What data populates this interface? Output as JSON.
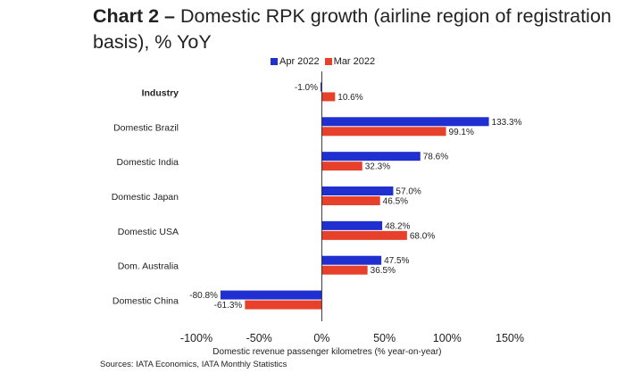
{
  "title_bold": "Chart 2 –",
  "title_rest": "Domestic RPK growth (airline region of registration basis), % YoY",
  "source": "Sources: IATA Economics, IATA Monthly Statistics",
  "chart_data": {
    "type": "bar",
    "orientation": "horizontal",
    "categories": [
      "Industry",
      "Domestic Brazil",
      "Domestic India",
      "Domestic Japan",
      "Domestic USA",
      "Dom. Australia",
      "Domestic China"
    ],
    "series": [
      {
        "name": "Apr 2022",
        "color": "#1f2fd0",
        "values": [
          -1.0,
          133.3,
          78.6,
          57.0,
          48.2,
          47.5,
          -80.8
        ],
        "labels": [
          "-1.0%",
          "133.3%",
          "78.6%",
          "57.0%",
          "48.2%",
          "47.5%",
          "-80.8%"
        ]
      },
      {
        "name": "Mar 2022",
        "color": "#e8412b",
        "values": [
          10.6,
          99.1,
          32.3,
          46.5,
          68.0,
          36.5,
          -61.3
        ],
        "labels": [
          "10.6%",
          "99.1%",
          "32.3%",
          "46.5%",
          "68.0%",
          "36.5%",
          "-61.3%"
        ]
      }
    ],
    "xlabel": "Domestic revenue passenger kilometres (% year-on-year)",
    "xlim": [
      -100,
      150
    ],
    "xticks": [
      -100,
      -50,
      0,
      50,
      100,
      150
    ],
    "xtick_labels": [
      "-100%",
      "-50%",
      "0%",
      "50%",
      "100%",
      "150%"
    ],
    "legend": "top",
    "grid": false
  }
}
